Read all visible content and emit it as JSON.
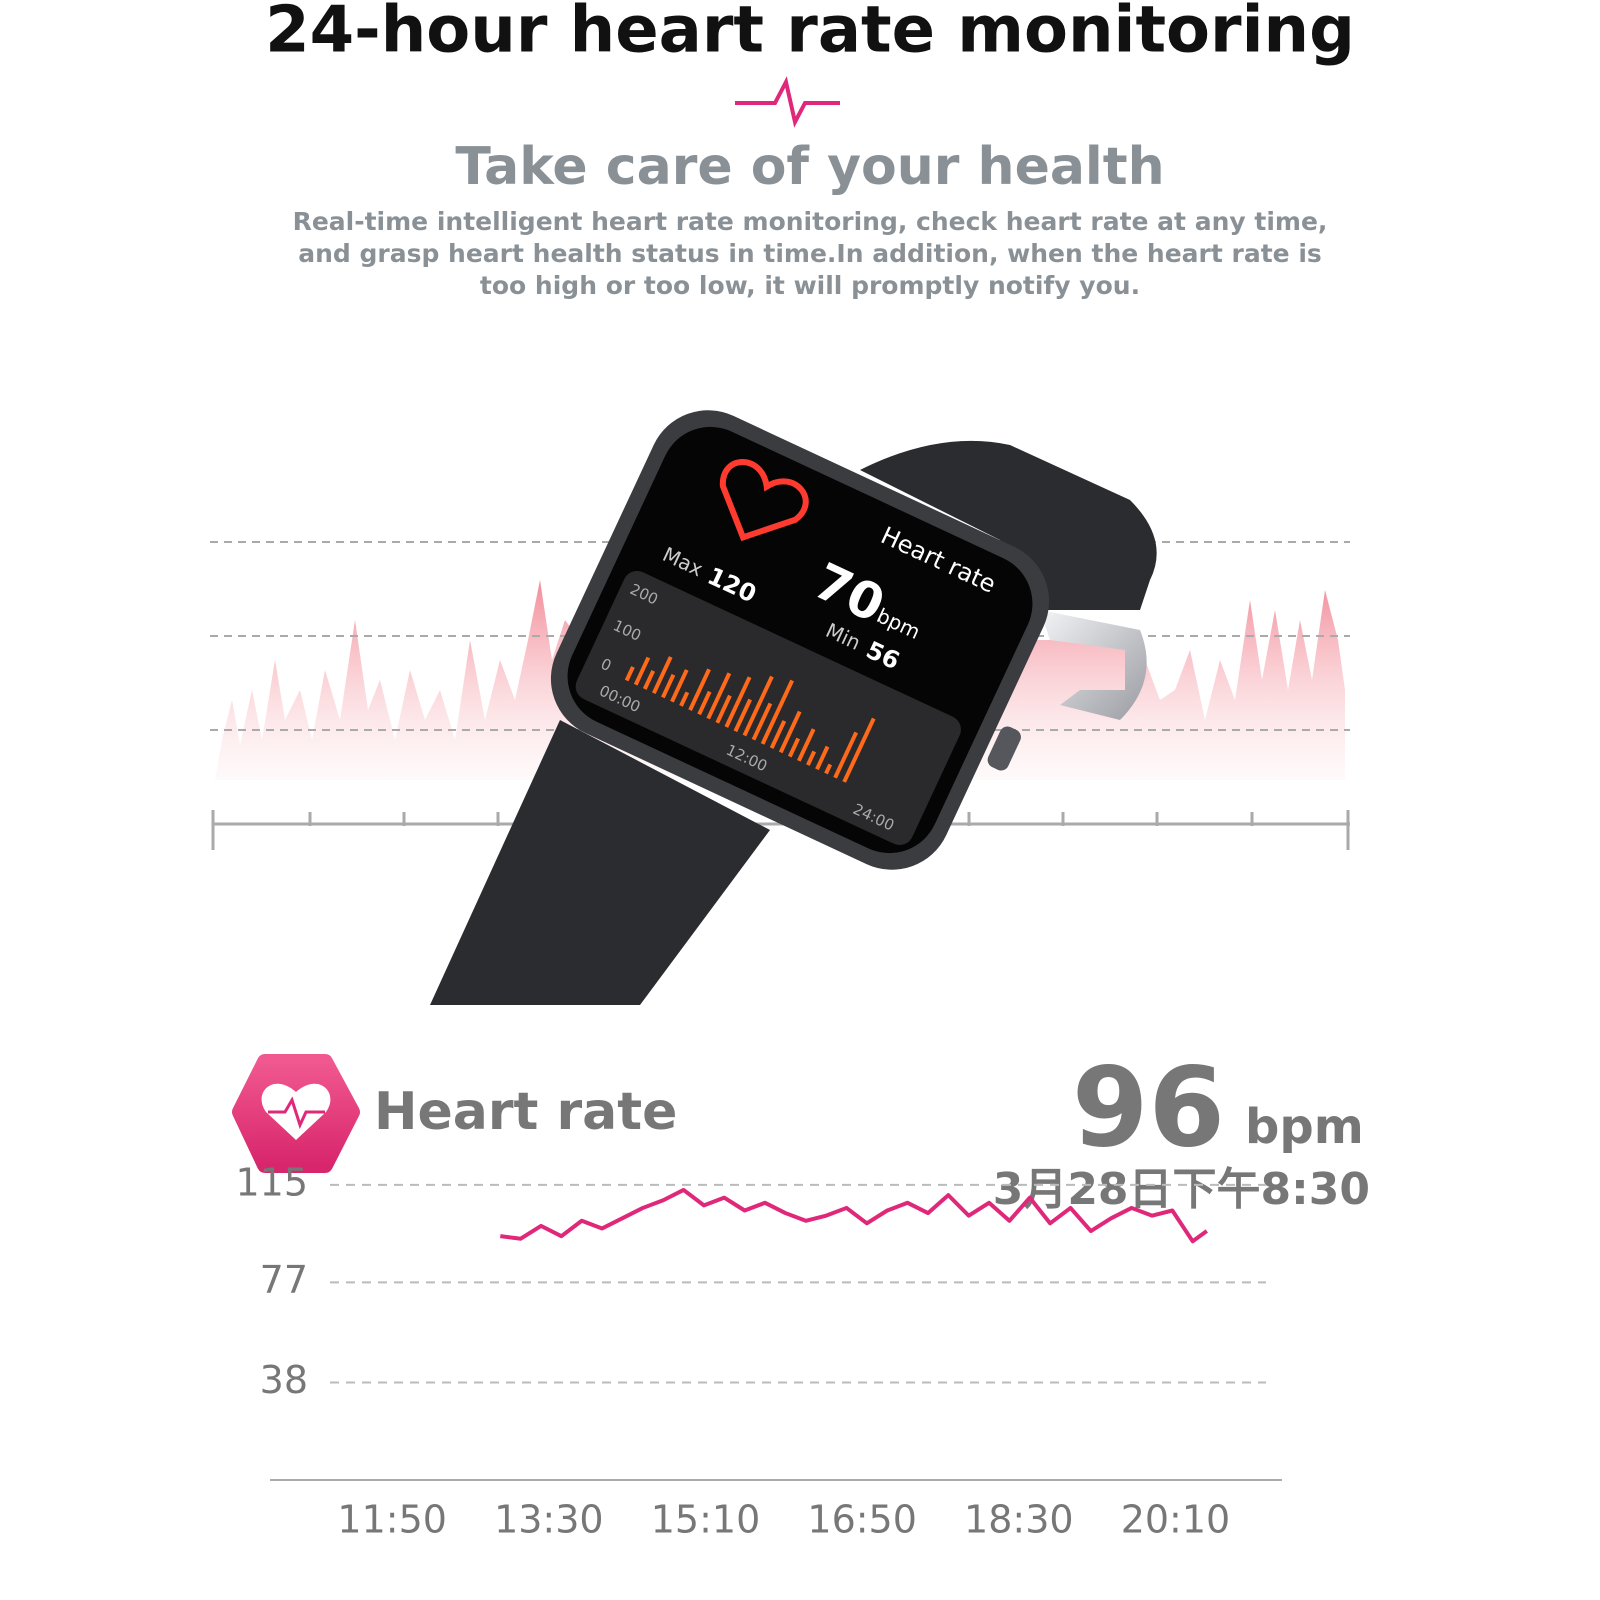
{
  "header": {
    "title": "24-hour heart rate monitoring",
    "subtitle": "Take care of your health",
    "description": [
      "Real-time intelligent heart rate monitoring, check heart rate at any time,",
      "and grasp heart health status in time.In addition, when the heart rate is",
      "too high or too low, it will promptly notify you."
    ]
  },
  "watch_screen": {
    "title": "Heart rate",
    "value": "70",
    "unit": "bpm",
    "max_label": "Max",
    "max_value": "120",
    "min_label": "Min",
    "min_value": "56",
    "axis_labels": [
      "200",
      "100",
      "0"
    ],
    "time_labels": [
      "00:00",
      "12:00",
      "24:00"
    ]
  },
  "heart_rate_card": {
    "title": "Heart rate",
    "value": "96",
    "unit": "bpm",
    "timestamp": "3月28日下午8:30"
  },
  "chart_data": {
    "type": "line",
    "x": [
      779,
      792,
      805,
      818,
      831,
      844,
      857,
      870,
      883,
      896,
      909,
      922,
      935,
      948,
      961,
      974,
      987,
      1000,
      1013,
      1026,
      1039,
      1052,
      1065,
      1078,
      1091,
      1104,
      1117,
      1130,
      1143,
      1156,
      1169,
      1182,
      1195,
      1208,
      1221,
      1230
    ],
    "series": [
      {
        "color": "#e0287a",
        "values": [
          95,
          94,
          99,
          95,
          101,
          98,
          102,
          106,
          109,
          113,
          107,
          110,
          105,
          108,
          104,
          101,
          103,
          106,
          100,
          105,
          108,
          104,
          111,
          103,
          108,
          101,
          110,
          100,
          106,
          97,
          102,
          106,
          103,
          105,
          93,
          97
        ]
      }
    ],
    "xlim": [
      632,
      1278
    ],
    "xticks": [
      {
        "value": 710,
        "label": "11:50"
      },
      {
        "value": 810,
        "label": "13:30"
      },
      {
        "value": 910,
        "label": "15:10"
      },
      {
        "value": 1010,
        "label": "16:50"
      },
      {
        "value": 1110,
        "label": "18:30"
      },
      {
        "value": 1210,
        "label": "20:10"
      }
    ],
    "ylim": [
      0,
      120
    ],
    "yticks": [
      38,
      77,
      115
    ],
    "grid": true
  }
}
